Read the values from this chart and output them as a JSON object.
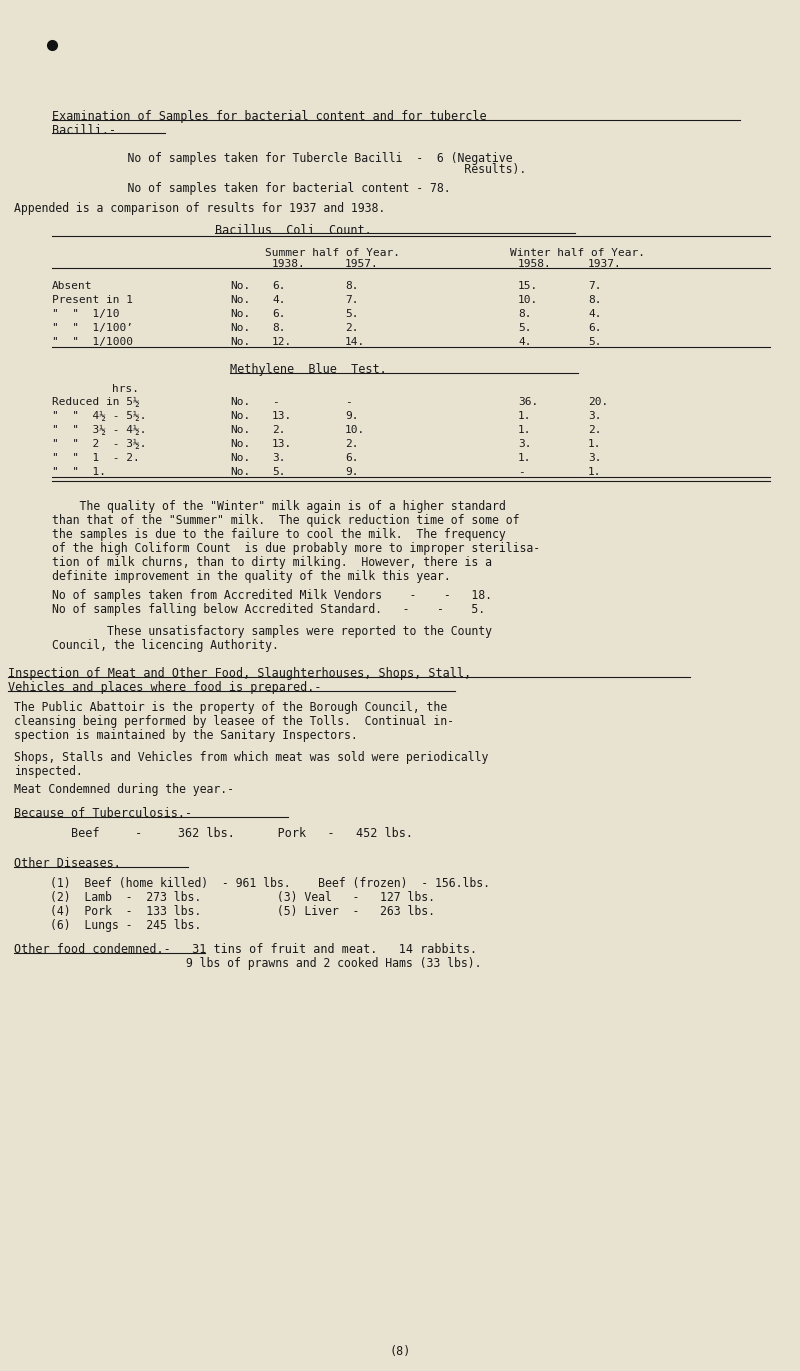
{
  "bg_color": "#e8e2d0",
  "text_color": "#1a1a1a",
  "title1": "Examination of Samples for bacterial content and for tubercle",
  "title2": "Bacilli.-",
  "intro1": "    No of samples taken for Tubercle Bacilli  -  6 (Negative",
  "intro2": "                                                     Results).",
  "intro3": "    No of samples taken for bacterial content - 78.",
  "intro4": "Appended is a comparison of results for 1937 and 1938.",
  "table1_title": "Bacillus  Coli  Count.",
  "table1_rows": [
    [
      "Absent",
      "No.",
      "6.",
      "8.",
      "15.",
      "7."
    ],
    [
      "Present in 1",
      "No.",
      "4.",
      "7.",
      "10.",
      "8."
    ],
    [
      "\"  \"  1/10",
      "No.",
      "6.",
      "5.",
      "8.",
      "4."
    ],
    [
      "\"  \"  1/100’",
      "No.",
      "8.",
      "2.",
      "5.",
      "6."
    ],
    [
      "\"  \"  1/1000",
      "No.",
      "12.",
      "14.",
      "4.",
      "5."
    ]
  ],
  "table2_title": "Methylene  Blue  Test.",
  "table2_rows": [
    [
      "Reduced in 5½",
      "No.",
      "-",
      "-",
      "36.",
      "20."
    ],
    [
      "\"  \"  4½ - 5½.",
      "No.",
      "13.",
      "9.",
      "1.",
      "3."
    ],
    [
      "\"  \"  3½ - 4½.",
      "No.",
      "2.",
      "10.",
      "1.",
      "2."
    ],
    [
      "\"  \"  2  - 3½.",
      "No.",
      "13.",
      "2.",
      "3.",
      "1."
    ],
    [
      "\"  \"  1  - 2.",
      "No.",
      "3.",
      "6.",
      "1.",
      "3."
    ],
    [
      "\"  \"  1.",
      "No.",
      "5.",
      "9.",
      "-",
      "1."
    ]
  ],
  "para1_lines": [
    "    The quality of the \"Winter\" milk again is of a higher standard",
    "than that of the \"Summer\" milk.  The quick reduction time of some of",
    "the samples is due to the failure to cool the milk.  The frequency",
    "of the high Coliform Count  is due probably more to improper sterilisa-",
    "tion of milk churns, than to dirty milking.  However, there is a",
    "definite improvement in the quality of the milk this year."
  ],
  "accredited1": "No of samples taken from Accredited Milk Vendors    -    -   18.",
  "accredited2": "No of samples falling below Accredited Standard.   -    -    5.",
  "para2_lines": [
    "        These unsatisfactory samples were reported to the County",
    "Council, the licencing Authority."
  ],
  "inspect_title1": "Inspection of Meat and Other Food, Slaughterhouses, Shops, Stall,",
  "inspect_title2": "Vehicles and places where food is prepared.-",
  "para3_lines": [
    "The Public Abattoir is the property of the Borough Council, the",
    "cleansing being performed by leasee of the Tolls.  Continual in-",
    "spection is maintained by the Sanitary Inspectors."
  ],
  "para4_lines": [
    "Shops, Stalls and Vehicles from which meat was sold were periodically",
    "inspected."
  ],
  "para5": "Meat Condemned during the year.-",
  "tuberculosis_title": "Because of Tuberculosis.-",
  "tuberculosis_line": "        Beef     -     362 lbs.      Pork   -   452 lbs.",
  "other_diseases_title": "Other Diseases.",
  "other_diseases_lines": [
    "(1)  Beef (home killed)  - 961 lbs.    Beef (frozen)  - 156.lbs.",
    "(2)  Lamb  -  273 lbs.           (3) Veal   -   127 lbs.",
    "(4)  Pork  -  133 lbs.           (5) Liver  -   263 lbs.",
    "(6)  Lungs -  245 lbs."
  ],
  "other_food1": "Other food condemned.-   31 tins of fruit and meat.   14 rabbits.",
  "other_food2": "                         9 lbs of prawns and 2 cooked Hams (33 lbs).",
  "page_num": "(8)"
}
